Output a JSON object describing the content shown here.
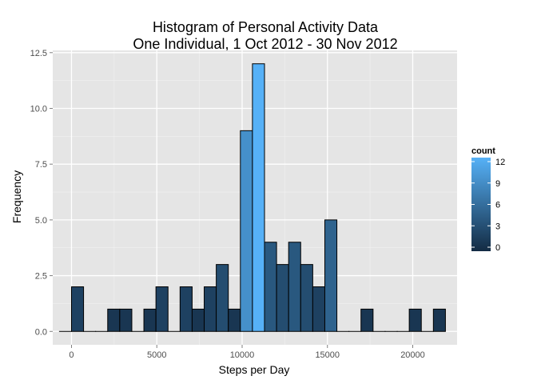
{
  "chart_data": {
    "type": "bar",
    "title_line1": "Histogram of Personal Activity Data",
    "title_line2": "One Individual, 1 Oct 2012 - 30 Nov 2012",
    "xlabel": "Steps per Day",
    "ylabel": "Frequency",
    "xlim": [
      -1100,
      22600
    ],
    "ylim": [
      -0.6,
      12.6
    ],
    "x_ticks": [
      0,
      5000,
      10000,
      15000,
      20000
    ],
    "x_tick_labels": [
      "0",
      "5000",
      "10000",
      "15000",
      "20000"
    ],
    "y_ticks": [
      0,
      2.5,
      5,
      7.5,
      10,
      12.5
    ],
    "y_tick_labels": [
      "0.0",
      "2.5",
      "5.0",
      "7.5",
      "10.0",
      "12.5"
    ],
    "bin_width": 707,
    "bins_start": -707,
    "values": [
      0,
      2,
      0,
      0,
      1,
      1,
      0,
      1,
      2,
      0,
      2,
      1,
      2,
      3,
      1,
      9,
      12,
      4,
      3,
      4,
      3,
      2,
      5,
      0,
      0,
      1,
      0,
      0,
      0,
      1,
      0,
      1
    ],
    "grid": true,
    "panel_background": "#e5e5e5",
    "grid_color": "#ffffff",
    "bar_outline": "#000000",
    "legend": {
      "title": "count",
      "placement": "right",
      "breaks": [
        0,
        3,
        6,
        9,
        12
      ],
      "labels": [
        "0",
        "3",
        "6",
        "9",
        "12"
      ],
      "low_color": "#132b43",
      "high_color": "#56b1f7"
    }
  }
}
